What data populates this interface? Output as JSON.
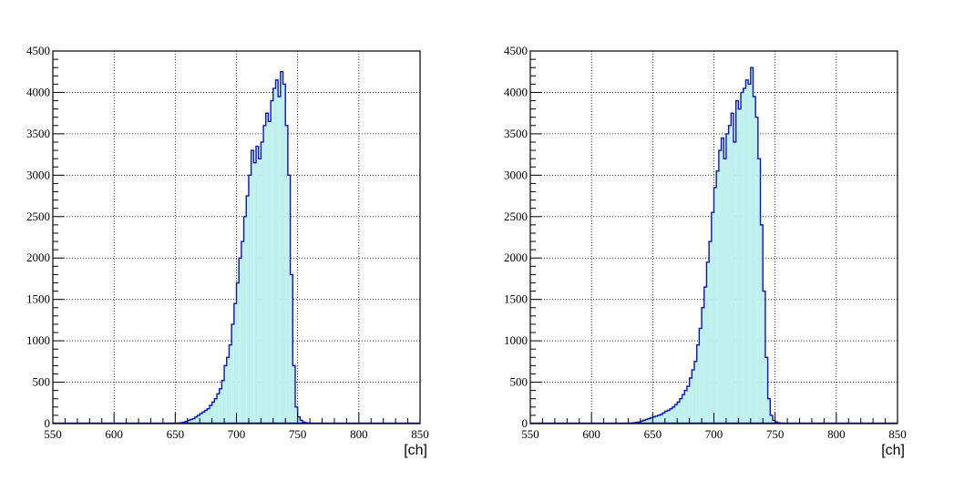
{
  "chart_data": [
    {
      "type": "bar",
      "title": "",
      "xlabel": "[ch]",
      "ylabel": "",
      "xlim": [
        550,
        850
      ],
      "ylim": [
        0,
        4500
      ],
      "x_ticks": [
        "550",
        "600",
        "650",
        "700",
        "750",
        "800",
        "850"
      ],
      "y_ticks": [
        "0",
        "500",
        "1000",
        "1500",
        "2000",
        "2500",
        "3000",
        "3500",
        "4000",
        "4500"
      ],
      "grid": true,
      "legend": "none",
      "bin_width": 2,
      "x": [
        650,
        652,
        654,
        656,
        658,
        660,
        662,
        664,
        666,
        668,
        670,
        672,
        674,
        676,
        678,
        680,
        682,
        684,
        686,
        688,
        690,
        692,
        694,
        696,
        698,
        700,
        702,
        704,
        706,
        708,
        710,
        712,
        714,
        716,
        718,
        720,
        722,
        724,
        726,
        728,
        730,
        732,
        734,
        736,
        738,
        740,
        742,
        744,
        746,
        748,
        750,
        752,
        754,
        756,
        758,
        760
      ],
      "values": [
        2,
        8,
        10,
        15,
        25,
        40,
        50,
        60,
        80,
        100,
        120,
        140,
        160,
        180,
        220,
        260,
        300,
        360,
        420,
        520,
        700,
        800,
        950,
        1200,
        1450,
        1700,
        2000,
        2200,
        2500,
        2750,
        3000,
        3300,
        3150,
        3350,
        3200,
        3400,
        3600,
        3750,
        3650,
        3900,
        4050,
        4150,
        3950,
        4250,
        4100,
        3600,
        3000,
        1800,
        700,
        200,
        80,
        40,
        20,
        10,
        5,
        2
      ],
      "fill_color": "#bff0ee",
      "line_color": "#0a13c8"
    },
    {
      "type": "bar",
      "title": "",
      "xlabel": "[ch]",
      "ylabel": "",
      "xlim": [
        550,
        850
      ],
      "ylim": [
        0,
        4500
      ],
      "x_ticks": [
        "550",
        "600",
        "650",
        "700",
        "750",
        "800",
        "850"
      ],
      "y_ticks": [
        "0",
        "500",
        "1000",
        "1500",
        "2000",
        "2500",
        "3000",
        "3500",
        "4000",
        "4500"
      ],
      "grid": true,
      "legend": "none",
      "bin_width": 2,
      "x": [
        630,
        632,
        634,
        636,
        638,
        640,
        642,
        644,
        646,
        648,
        650,
        652,
        654,
        656,
        658,
        660,
        662,
        664,
        666,
        668,
        670,
        672,
        674,
        676,
        678,
        680,
        682,
        684,
        686,
        688,
        690,
        692,
        694,
        696,
        698,
        700,
        702,
        704,
        706,
        708,
        710,
        712,
        714,
        716,
        718,
        720,
        722,
        724,
        726,
        728,
        730,
        732,
        734,
        736,
        738,
        740,
        742,
        744,
        746,
        748,
        750,
        752,
        754,
        756
      ],
      "values": [
        5,
        8,
        10,
        15,
        20,
        30,
        40,
        50,
        60,
        70,
        80,
        90,
        100,
        110,
        130,
        150,
        160,
        180,
        200,
        230,
        260,
        300,
        350,
        400,
        450,
        550,
        650,
        750,
        950,
        1150,
        1400,
        1650,
        1950,
        2200,
        2550,
        2850,
        3050,
        3300,
        3450,
        3200,
        3500,
        3600,
        3750,
        3400,
        3900,
        3800,
        4000,
        4050,
        4150,
        4100,
        4300,
        3950,
        3700,
        3200,
        2400,
        1600,
        800,
        300,
        100,
        40,
        20,
        10,
        5,
        2
      ],
      "fill_color": "#bff0ee",
      "line_color": "#0a13c8"
    }
  ]
}
